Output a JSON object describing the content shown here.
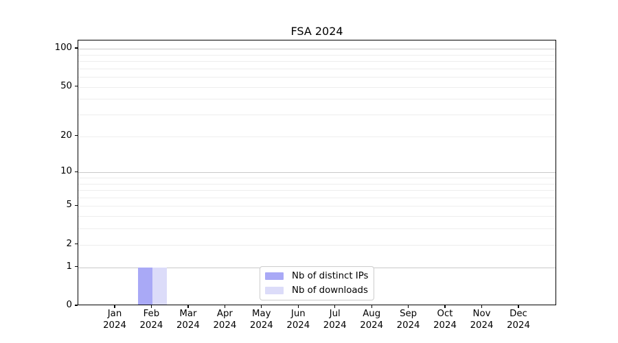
{
  "title": "FSA 2024",
  "chart_data": {
    "type": "bar",
    "title": "FSA 2024",
    "categories": [
      "Jan",
      "Feb",
      "Mar",
      "Apr",
      "May",
      "Jun",
      "Jul",
      "Aug",
      "Sep",
      "Oct",
      "Nov",
      "Dec"
    ],
    "x_year_label": "2024",
    "series": [
      {
        "name": "Nb of distinct IPs",
        "color": "#a9a9f6",
        "values": [
          0,
          1,
          0,
          0,
          0,
          0,
          0,
          0,
          0,
          0,
          0,
          0
        ]
      },
      {
        "name": "Nb of downloads",
        "color": "#dcdcf9",
        "values": [
          0,
          1,
          0,
          0,
          0,
          0,
          0,
          0,
          0,
          0,
          0,
          0
        ]
      }
    ],
    "yscale": "log1p",
    "ylim": [
      0,
      116
    ],
    "y_tick_values": [
      0,
      1,
      2,
      5,
      10,
      20,
      50,
      100
    ],
    "y_gridlines": {
      "major": [
        1,
        10,
        100
      ],
      "minor": [
        2,
        3,
        4,
        5,
        6,
        7,
        8,
        9,
        20,
        30,
        40,
        50,
        60,
        70,
        80,
        90
      ]
    },
    "grid": "horizontal",
    "legend_position": "lower-center-inside",
    "colors": {
      "axis": "#000000",
      "grid_major": "#c9c9c9",
      "grid_minor": "#ededed",
      "text": "#000000",
      "legend_border": "#cccccc",
      "background": "#ffffff"
    }
  }
}
